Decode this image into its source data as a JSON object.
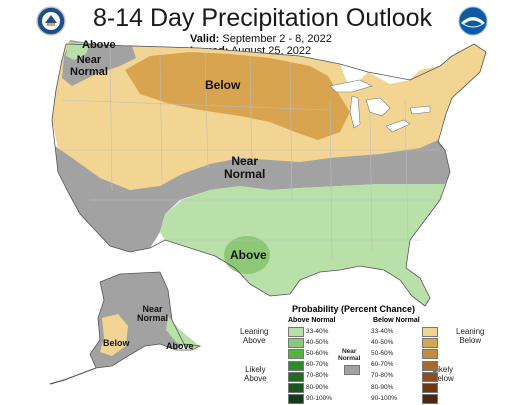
{
  "header": {
    "title": "8-14 Day Precipitation Outlook",
    "valid_label": "Valid:",
    "valid_value": "September 2 - 8, 2022",
    "issued_label": "Issued:",
    "issued_value": "August 25, 2022"
  },
  "logos": {
    "left": "noaa-doc-seal-icon",
    "right": "noaa-logo-icon"
  },
  "map_labels": {
    "nw_above": "Above",
    "nw_near": "Near\nNormal",
    "below": "Below",
    "central_near": "Near\nNormal",
    "south_above": "Above",
    "ak_near": "Near\nNormal",
    "ak_below": "Below",
    "ak_above": "Above"
  },
  "colors": {
    "below_33_40": "#f2d593",
    "below_40_50": "#d9a450",
    "near_normal": "#a2a2a2",
    "above_33_40": "#b8e0a8",
    "above_40_50": "#8cc875",
    "water": "#ffffff"
  },
  "legend": {
    "title": "Probability (Percent Chance)",
    "above_header": "Above Normal",
    "below_header": "Below Normal",
    "near_label": "Near\nNormal",
    "leaning_above": "Leaning\nAbove",
    "likely_above": "Likely\nAbove",
    "leaning_below": "Leaning\nBelow",
    "likely_below": "Likely\nBelow",
    "above_bins": [
      {
        "label": "33-40%",
        "color": "#b8e0a8"
      },
      {
        "label": "40-50%",
        "color": "#8cc875"
      },
      {
        "label": "50-60%",
        "color": "#55b140"
      },
      {
        "label": "60-70%",
        "color": "#2f8c2a"
      },
      {
        "label": "70-80%",
        "color": "#226b26"
      },
      {
        "label": "80-90%",
        "color": "#1a5221"
      },
      {
        "label": "90-100%",
        "color": "#123a16"
      }
    ],
    "below_bins": [
      {
        "label": "33-40%",
        "color": "#f2d593"
      },
      {
        "label": "40-50%",
        "color": "#d9a450"
      },
      {
        "label": "50-60%",
        "color": "#c68a3a"
      },
      {
        "label": "60-70%",
        "color": "#a9682c"
      },
      {
        "label": "70-80%",
        "color": "#8c4d1f"
      },
      {
        "label": "80-90%",
        "color": "#6e3816"
      },
      {
        "label": "90-100%",
        "color": "#4e2510"
      }
    ],
    "near_color": "#a2a2a2"
  }
}
